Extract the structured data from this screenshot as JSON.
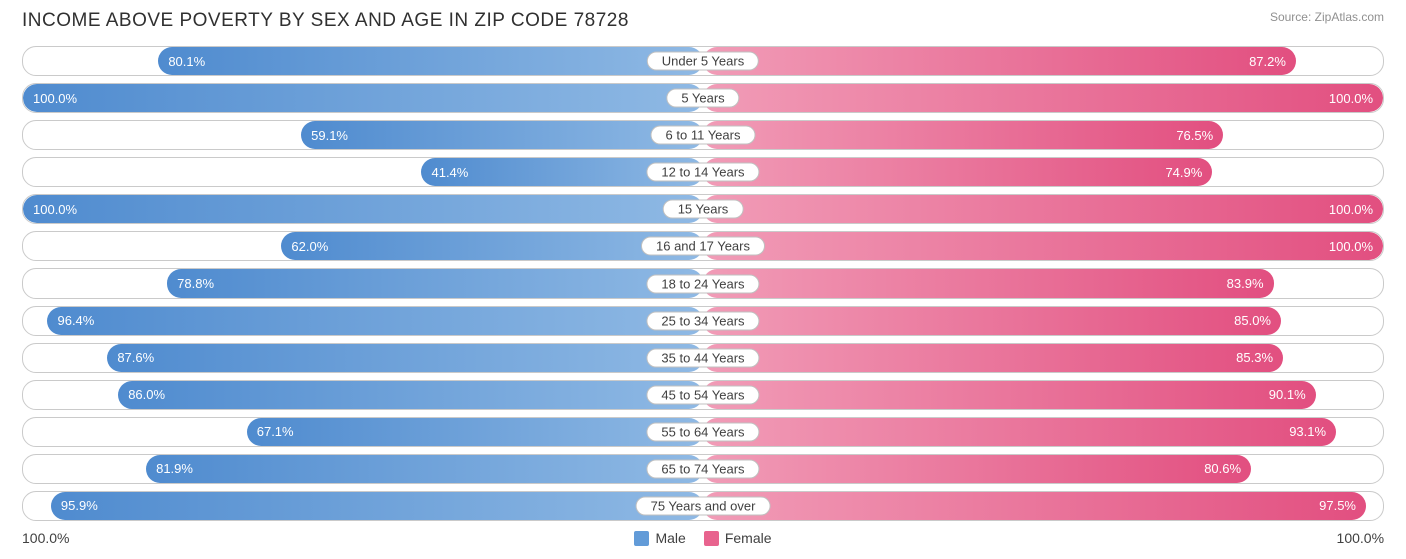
{
  "title": "INCOME ABOVE POVERTY BY SEX AND AGE IN ZIP CODE 78728",
  "source": "Source: ZipAtlas.com",
  "axis": {
    "left": "100.0%",
    "right": "100.0%"
  },
  "legend": {
    "male": {
      "label": "Male",
      "color": "#629bd8"
    },
    "female": {
      "label": "Female",
      "color": "#e8638e"
    }
  },
  "colors": {
    "male_edge": "#4f8bcf",
    "male_inner": "#8fb9e4",
    "female_edge": "#e24f80",
    "female_inner": "#f19cb7",
    "row_border": "#cacaca",
    "background": "#ffffff",
    "title_color": "#303030"
  },
  "rows": [
    {
      "category": "Under 5 Years",
      "male_pct": 80.1,
      "male_label": "80.1%",
      "female_pct": 87.2,
      "female_label": "87.2%"
    },
    {
      "category": "5 Years",
      "male_pct": 100.0,
      "male_label": "100.0%",
      "female_pct": 100.0,
      "female_label": "100.0%"
    },
    {
      "category": "6 to 11 Years",
      "male_pct": 59.1,
      "male_label": "59.1%",
      "female_pct": 76.5,
      "female_label": "76.5%"
    },
    {
      "category": "12 to 14 Years",
      "male_pct": 41.4,
      "male_label": "41.4%",
      "female_pct": 74.9,
      "female_label": "74.9%"
    },
    {
      "category": "15 Years",
      "male_pct": 100.0,
      "male_label": "100.0%",
      "female_pct": 100.0,
      "female_label": "100.0%"
    },
    {
      "category": "16 and 17 Years",
      "male_pct": 62.0,
      "male_label": "62.0%",
      "female_pct": 100.0,
      "female_label": "100.0%"
    },
    {
      "category": "18 to 24 Years",
      "male_pct": 78.8,
      "male_label": "78.8%",
      "female_pct": 83.9,
      "female_label": "83.9%"
    },
    {
      "category": "25 to 34 Years",
      "male_pct": 96.4,
      "male_label": "96.4%",
      "female_pct": 85.0,
      "female_label": "85.0%"
    },
    {
      "category": "35 to 44 Years",
      "male_pct": 87.6,
      "male_label": "87.6%",
      "female_pct": 85.3,
      "female_label": "85.3%"
    },
    {
      "category": "45 to 54 Years",
      "male_pct": 86.0,
      "male_label": "86.0%",
      "female_pct": 90.1,
      "female_label": "90.1%"
    },
    {
      "category": "55 to 64 Years",
      "male_pct": 67.1,
      "male_label": "67.1%",
      "female_pct": 93.1,
      "female_label": "93.1%"
    },
    {
      "category": "65 to 74 Years",
      "male_pct": 81.9,
      "male_label": "81.9%",
      "female_pct": 80.6,
      "female_label": "80.6%"
    },
    {
      "category": "75 Years and over",
      "male_pct": 95.9,
      "male_label": "95.9%",
      "female_pct": 97.5,
      "female_label": "97.5%"
    }
  ]
}
